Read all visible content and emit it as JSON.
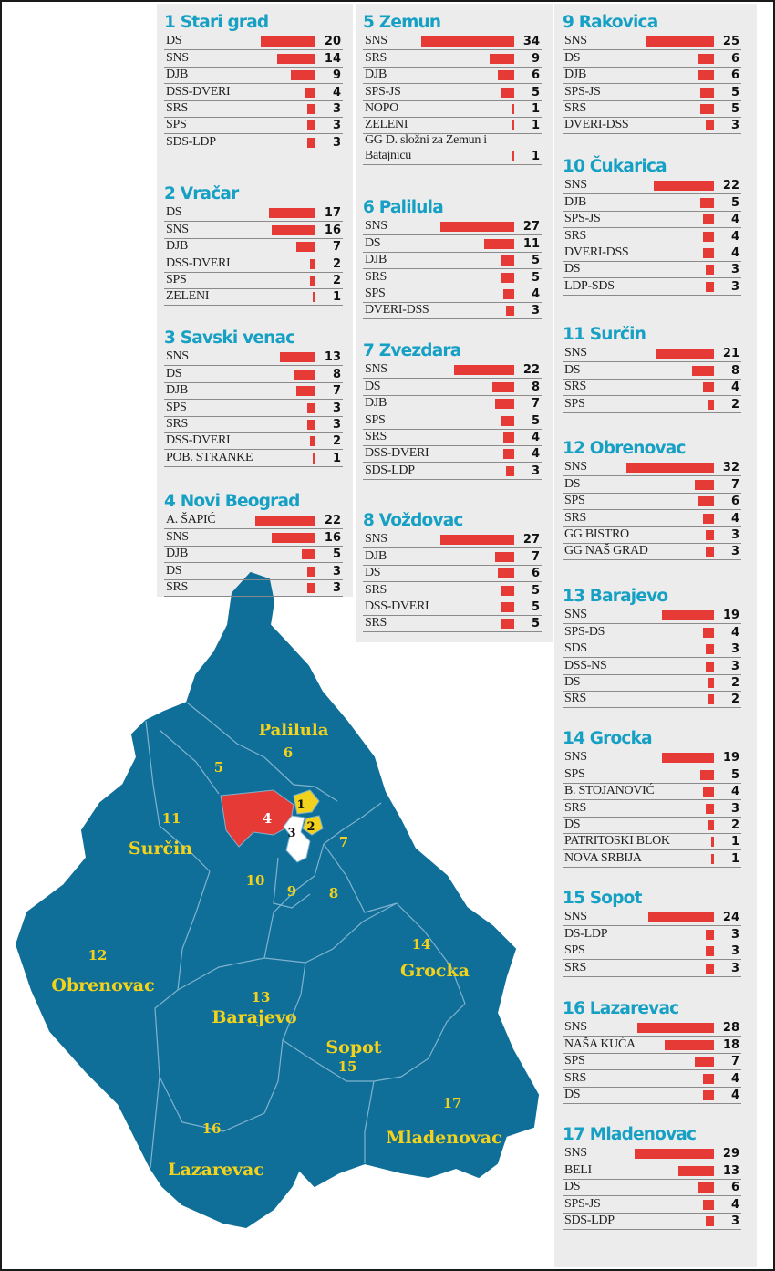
{
  "chart_data": {
    "type": "bar",
    "districts": [
      {
        "title": "1 Stari grad",
        "bars": [
          {
            "party": "DS",
            "value": 20
          },
          {
            "party": "SNS",
            "value": 14
          },
          {
            "party": "DJB",
            "value": 9
          },
          {
            "party": "DSS-DVERI",
            "value": 4
          },
          {
            "party": "SRS",
            "value": 3
          },
          {
            "party": "SPS",
            "value": 3
          },
          {
            "party": "SDS-LDP",
            "value": 3
          }
        ]
      },
      {
        "title": "2 Vračar",
        "bars": [
          {
            "party": "DS",
            "value": 17
          },
          {
            "party": "SNS",
            "value": 16
          },
          {
            "party": "DJB",
            "value": 7
          },
          {
            "party": "DSS-DVERI",
            "value": 2
          },
          {
            "party": "SPS",
            "value": 2
          },
          {
            "party": "ZELENI",
            "value": 1
          }
        ]
      },
      {
        "title": "3 Savski venac",
        "bars": [
          {
            "party": "SNS",
            "value": 13
          },
          {
            "party": "DS",
            "value": 8
          },
          {
            "party": "DJB",
            "value": 7
          },
          {
            "party": "SPS",
            "value": 3
          },
          {
            "party": "SRS",
            "value": 3
          },
          {
            "party": "DSS-DVERI",
            "value": 2
          },
          {
            "party": "POB. STRANKE",
            "value": 1
          }
        ]
      },
      {
        "title": "4 Novi Beograd",
        "bars": [
          {
            "party": "A. ŠAPIĆ",
            "value": 22
          },
          {
            "party": "SNS",
            "value": 16
          },
          {
            "party": "DJB",
            "value": 5
          },
          {
            "party": "DS",
            "value": 3
          },
          {
            "party": "SRS",
            "value": 3
          }
        ]
      },
      {
        "title": "5 Zemun",
        "bars": [
          {
            "party": "SNS",
            "value": 34
          },
          {
            "party": "SRS",
            "value": 9
          },
          {
            "party": "DJB",
            "value": 6
          },
          {
            "party": "SPS-JS",
            "value": 5
          },
          {
            "party": "NOPO",
            "value": 1
          },
          {
            "party": "ZELENI",
            "value": 1
          },
          {
            "party": "GG D. složni za Zemun i Batajnicu",
            "value": 1
          }
        ]
      },
      {
        "title": "6 Palilula",
        "bars": [
          {
            "party": "SNS",
            "value": 27
          },
          {
            "party": "DS",
            "value": 11
          },
          {
            "party": "DJB",
            "value": 5
          },
          {
            "party": "SRS",
            "value": 5
          },
          {
            "party": "SPS",
            "value": 4
          },
          {
            "party": "DVERI-DSS",
            "value": 3
          }
        ]
      },
      {
        "title": "7 Zvezdara",
        "bars": [
          {
            "party": "SNS",
            "value": 22
          },
          {
            "party": "DS",
            "value": 8
          },
          {
            "party": "DJB",
            "value": 7
          },
          {
            "party": "SPS",
            "value": 5
          },
          {
            "party": "SRS",
            "value": 4
          },
          {
            "party": "DSS-DVERI",
            "value": 4
          },
          {
            "party": "SDS-LDP",
            "value": 3
          }
        ]
      },
      {
        "title": "8 Voždovac",
        "bars": [
          {
            "party": "SNS",
            "value": 27
          },
          {
            "party": "DJB",
            "value": 7
          },
          {
            "party": "DS",
            "value": 6
          },
          {
            "party": "SRS",
            "value": 5
          },
          {
            "party": "DSS-DVERI",
            "value": 5
          },
          {
            "party": "SRS",
            "value": 5
          }
        ]
      },
      {
        "title": "9 Rakovica",
        "bars": [
          {
            "party": "SNS",
            "value": 25
          },
          {
            "party": "DS",
            "value": 6
          },
          {
            "party": "DJB",
            "value": 6
          },
          {
            "party": "SPS-JS",
            "value": 5
          },
          {
            "party": "SRS",
            "value": 5
          },
          {
            "party": "DVERI-DSS",
            "value": 3
          }
        ]
      },
      {
        "title": "10 Čukarica",
        "bars": [
          {
            "party": "SNS",
            "value": 22
          },
          {
            "party": "DJB",
            "value": 5
          },
          {
            "party": "SPS-JS",
            "value": 4
          },
          {
            "party": "SRS",
            "value": 4
          },
          {
            "party": "DVERI-DSS",
            "value": 4
          },
          {
            "party": "DS",
            "value": 3
          },
          {
            "party": "LDP-SDS",
            "value": 3
          }
        ]
      },
      {
        "title": "11 Surčin",
        "bars": [
          {
            "party": "SNS",
            "value": 21
          },
          {
            "party": "DS",
            "value": 8
          },
          {
            "party": "SRS",
            "value": 4
          },
          {
            "party": "SPS",
            "value": 2
          }
        ]
      },
      {
        "title": "12 Obrenovac",
        "bars": [
          {
            "party": "SNS",
            "value": 32
          },
          {
            "party": "DS",
            "value": 7
          },
          {
            "party": "SPS",
            "value": 6
          },
          {
            "party": "SRS",
            "value": 4
          },
          {
            "party": "GG BISTRO",
            "value": 3
          },
          {
            "party": "GG NAŠ GRAD",
            "value": 3
          }
        ]
      },
      {
        "title": "13 Barajevo",
        "bars": [
          {
            "party": "SNS",
            "value": 19
          },
          {
            "party": "SPS-DS",
            "value": 4
          },
          {
            "party": "SDS",
            "value": 3
          },
          {
            "party": "DSS-NS",
            "value": 3
          },
          {
            "party": "DS",
            "value": 2
          },
          {
            "party": "SRS",
            "value": 2
          }
        ]
      },
      {
        "title": "14 Grocka",
        "bars": [
          {
            "party": "SNS",
            "value": 19
          },
          {
            "party": "SPS",
            "value": 5
          },
          {
            "party": "B. STOJANOVIĆ",
            "value": 4
          },
          {
            "party": "SRS",
            "value": 3
          },
          {
            "party": "DS",
            "value": 2
          },
          {
            "party": "PATRITOSKI BLOK",
            "value": 1
          },
          {
            "party": "NOVA SRBIJA",
            "value": 1
          }
        ]
      },
      {
        "title": "15 Sopot",
        "bars": [
          {
            "party": "SNS",
            "value": 24
          },
          {
            "party": "DS-LDP",
            "value": 3
          },
          {
            "party": "SPS",
            "value": 3
          },
          {
            "party": "SRS",
            "value": 3
          }
        ]
      },
      {
        "title": "16 Lazarevac",
        "bars": [
          {
            "party": "SNS",
            "value": 28
          },
          {
            "party": "NAŠA KUĆA",
            "value": 18
          },
          {
            "party": "SPS",
            "value": 7
          },
          {
            "party": "SRS",
            "value": 4
          },
          {
            "party": "DS",
            "value": 4
          }
        ]
      },
      {
        "title": "17 Mladenovac",
        "bars": [
          {
            "party": "SNS",
            "value": 29
          },
          {
            "party": "BELI",
            "value": 13
          },
          {
            "party": "DS",
            "value": 6
          },
          {
            "party": "SPS-JS",
            "value": 4
          },
          {
            "party": "SDS-LDP",
            "value": 3
          }
        ]
      }
    ]
  },
  "map": {
    "colors": {
      "base": "#0f6f98",
      "winner_a": "#e63a36",
      "winner_b": "#f2d21d",
      "other": "#ffffff",
      "label": "#f2d21d"
    },
    "labels": [
      {
        "id": "palilula",
        "text": "Palilula"
      },
      {
        "id": "n6",
        "text": "6"
      },
      {
        "id": "n5",
        "text": "5"
      },
      {
        "id": "n11",
        "text": "11"
      },
      {
        "id": "surcin",
        "text": "Surčin"
      },
      {
        "id": "n4",
        "text": "4"
      },
      {
        "id": "n1",
        "text": "1"
      },
      {
        "id": "n2",
        "text": "2"
      },
      {
        "id": "n3",
        "text": "3"
      },
      {
        "id": "n7",
        "text": "7"
      },
      {
        "id": "n10",
        "text": "10"
      },
      {
        "id": "n9",
        "text": "9"
      },
      {
        "id": "n8",
        "text": "8"
      },
      {
        "id": "n12",
        "text": "12"
      },
      {
        "id": "obrenovac",
        "text": "Obrenovac"
      },
      {
        "id": "n14",
        "text": "14"
      },
      {
        "id": "grocka",
        "text": "Grocka"
      },
      {
        "id": "n13",
        "text": "13"
      },
      {
        "id": "barajevo",
        "text": "Barajevo"
      },
      {
        "id": "sopot",
        "text": "Sopot"
      },
      {
        "id": "n15",
        "text": "15"
      },
      {
        "id": "n17",
        "text": "17"
      },
      {
        "id": "mladenovac",
        "text": "Mladenovac"
      },
      {
        "id": "n16",
        "text": "16"
      },
      {
        "id": "lazarevac",
        "text": "Lazarevac"
      }
    ]
  }
}
